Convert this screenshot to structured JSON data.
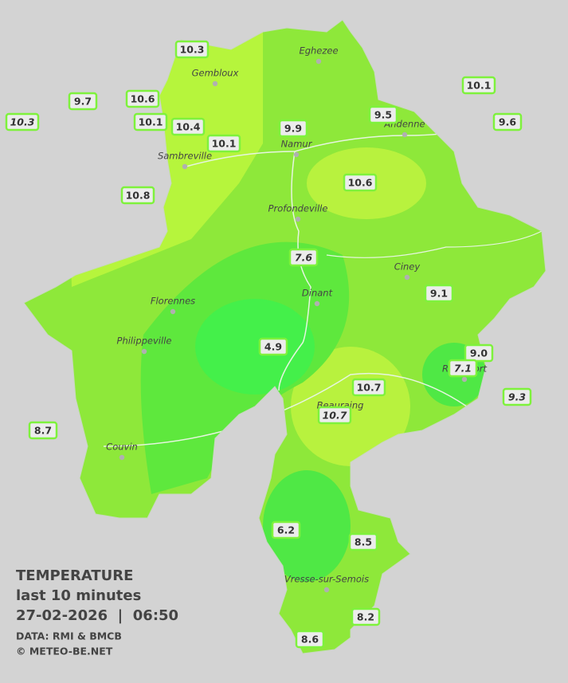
{
  "cities": [
    "Eghezee",
    "Gembloux",
    "Andenne",
    "Namur",
    "Sambreville",
    "Profondeville",
    "Ciney",
    "Florennes",
    "Dinant",
    "Philippeville",
    "Rochefort",
    "Beauraing",
    "Couvin",
    "Vresse-sur-Semois"
  ],
  "stations": [
    {
      "label": "10.3",
      "italic": false
    },
    {
      "label": "9.7",
      "italic": false
    },
    {
      "label": "10.3",
      "italic": true
    },
    {
      "label": "10.6",
      "italic": false
    },
    {
      "label": "10.1",
      "italic": false
    },
    {
      "label": "10.4",
      "italic": false
    },
    {
      "label": "10.1",
      "italic": false
    },
    {
      "label": "9.9",
      "italic": false
    },
    {
      "label": "9.5",
      "italic": false
    },
    {
      "label": "10.1",
      "italic": false
    },
    {
      "label": "9.6",
      "italic": false
    },
    {
      "label": "10.8",
      "italic": false
    },
    {
      "label": "10.6",
      "italic": false
    },
    {
      "label": "7.6",
      "italic": true
    },
    {
      "label": "9.1",
      "italic": false
    },
    {
      "label": "4.9",
      "italic": false
    },
    {
      "label": "9.0",
      "italic": false
    },
    {
      "label": "7.1",
      "italic": true
    },
    {
      "label": "10.7",
      "italic": false
    },
    {
      "label": "10.7",
      "italic": true
    },
    {
      "label": "9.3",
      "italic": true
    },
    {
      "label": "8.7",
      "italic": false
    },
    {
      "label": "6.2",
      "italic": false
    },
    {
      "label": "8.5",
      "italic": false
    },
    {
      "label": "8.2",
      "italic": false
    },
    {
      "label": "8.6",
      "italic": false
    }
  ],
  "legend": {
    "title": "TEMPERATURE",
    "subtitle": "last 10 minutes",
    "datetime": "27-02-2026  |  06:50",
    "source": "DATA: RMI & BMCB",
    "copyright": "© METEO-BE.NET"
  }
}
